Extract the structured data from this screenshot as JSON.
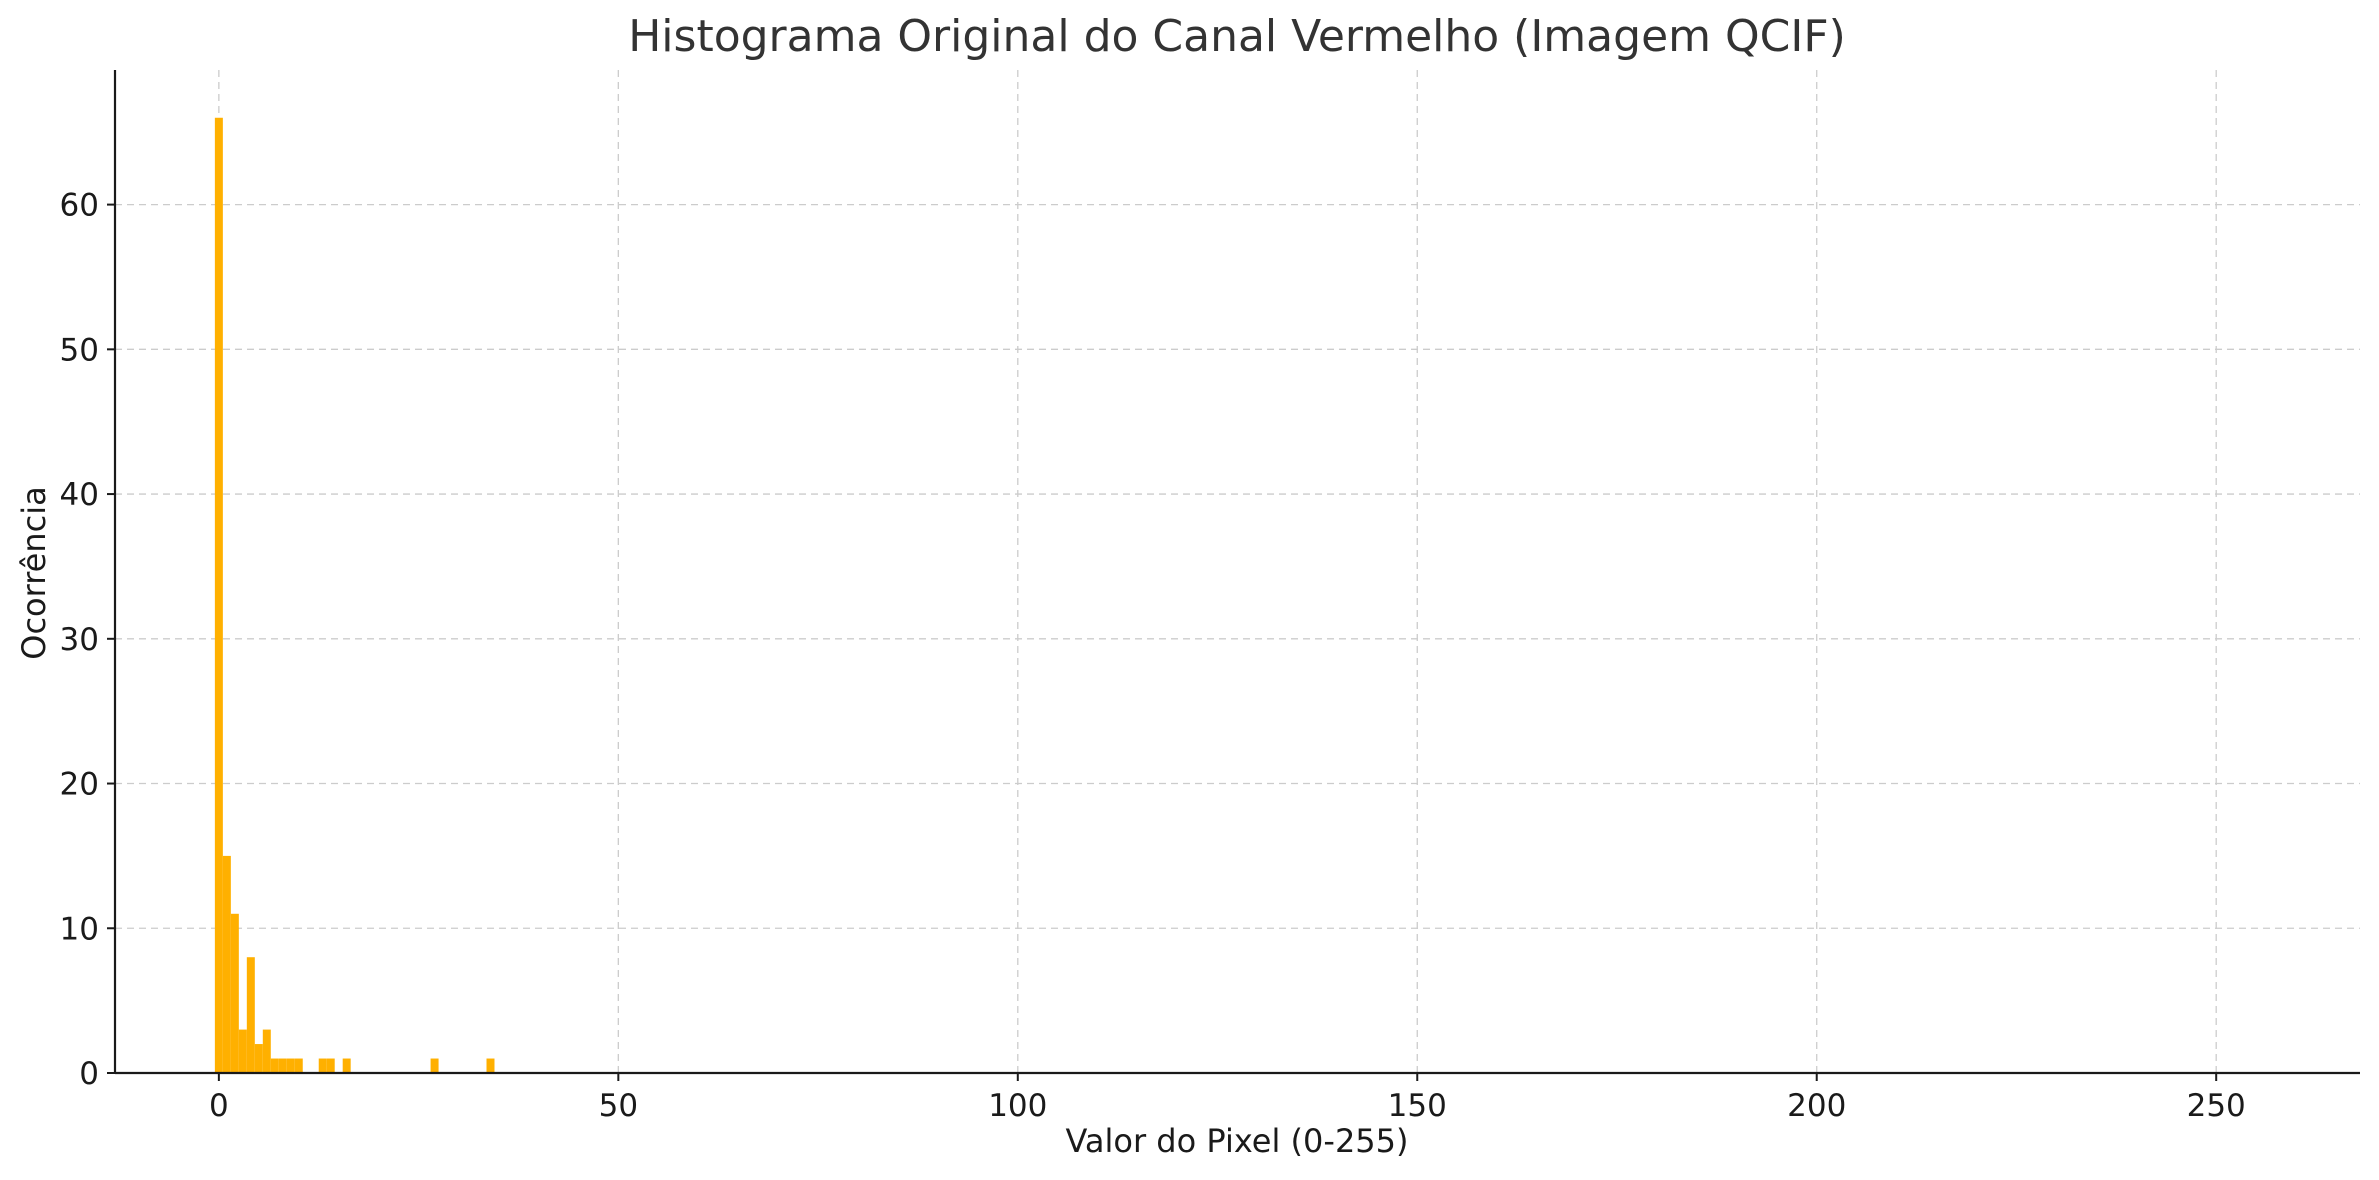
{
  "chart_data": {
    "type": "bar",
    "title": "Histograma Original do Canal Vermelho (Imagem QCIF)",
    "xlabel": "Valor do Pixel (0-255)",
    "ylabel": "Ocorrência",
    "xlim": [
      -13,
      268
    ],
    "ylim": [
      0,
      69.3
    ],
    "xticks": [
      0,
      50,
      100,
      150,
      200,
      250
    ],
    "yticks": [
      0,
      10,
      20,
      30,
      40,
      50,
      60
    ],
    "grid": true,
    "bin_width": 1,
    "bar_color": "#ffb000",
    "bins": [
      {
        "x": 0,
        "count": 66
      },
      {
        "x": 1,
        "count": 15
      },
      {
        "x": 2,
        "count": 11
      },
      {
        "x": 3,
        "count": 3
      },
      {
        "x": 4,
        "count": 8
      },
      {
        "x": 5,
        "count": 2
      },
      {
        "x": 6,
        "count": 3
      },
      {
        "x": 7,
        "count": 1
      },
      {
        "x": 8,
        "count": 1
      },
      {
        "x": 9,
        "count": 1
      },
      {
        "x": 10,
        "count": 1
      },
      {
        "x": 13,
        "count": 1
      },
      {
        "x": 14,
        "count": 1
      },
      {
        "x": 16,
        "count": 1
      },
      {
        "x": 27,
        "count": 1
      },
      {
        "x": 34,
        "count": 1
      }
    ]
  }
}
